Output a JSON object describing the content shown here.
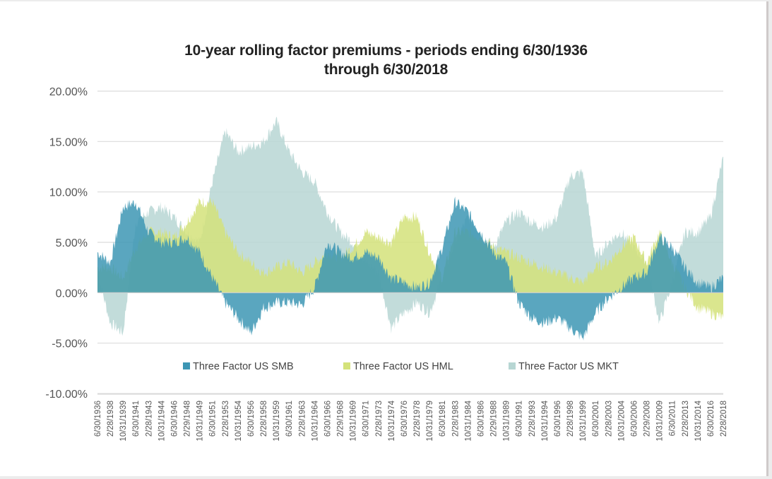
{
  "chart_data": {
    "type": "area",
    "title_lines": [
      "10-year rolling factor premiums - periods ending 6/30/1936",
      "through 6/30/2018"
    ],
    "xlabel": "",
    "ylabel": "",
    "ylim": [
      -0.1,
      0.2
    ],
    "yticks": [
      -0.1,
      -0.05,
      0.0,
      0.05,
      0.1,
      0.15,
      0.2
    ],
    "ytick_labels": [
      "-10.00%",
      "-5.00%",
      "0.00%",
      "5.00%",
      "10.00%",
      "15.00%",
      "20.00%"
    ],
    "grid": true,
    "legend_position": "bottom-inside",
    "categories": [
      "6/30/1936",
      "2/28/1938",
      "10/31/1939",
      "6/30/1941",
      "2/28/1943",
      "10/31/1944",
      "6/30/1946",
      "2/29/1948",
      "10/31/1949",
      "6/30/1951",
      "2/28/1953",
      "10/31/1954",
      "6/30/1956",
      "2/28/1958",
      "10/31/1959",
      "6/30/1961",
      "2/28/1963",
      "10/31/1964",
      "6/30/1966",
      "2/29/1968",
      "10/31/1969",
      "6/30/1971",
      "2/28/1973",
      "10/31/1974",
      "6/30/1976",
      "2/28/1978",
      "10/31/1979",
      "6/30/1981",
      "2/28/1983",
      "10/31/1984",
      "6/30/1986",
      "2/29/1988",
      "10/31/1989",
      "6/30/1991",
      "2/28/1993",
      "10/31/1994",
      "6/30/1996",
      "2/28/1998",
      "10/31/1999",
      "6/30/2001",
      "2/28/2003",
      "10/31/2004",
      "6/30/2006",
      "2/29/2008",
      "10/31/2009",
      "6/30/2011",
      "2/28/2013",
      "10/31/2014",
      "6/30/2016",
      "2/28/2018"
    ],
    "series": [
      {
        "name": "Three Factor US MKT",
        "color": "#b7d6d3",
        "values": [
          0.02,
          -0.03,
          -0.04,
          0.07,
          0.08,
          0.085,
          0.075,
          0.06,
          0.05,
          0.11,
          0.16,
          0.14,
          0.145,
          0.15,
          0.17,
          0.14,
          0.12,
          0.11,
          0.08,
          0.06,
          0.05,
          0.03,
          0.02,
          -0.035,
          -0.02,
          -0.01,
          -0.02,
          0.015,
          0.05,
          0.075,
          0.06,
          0.045,
          0.07,
          0.08,
          0.07,
          0.065,
          0.075,
          0.115,
          0.12,
          0.035,
          0.05,
          0.06,
          0.045,
          0.03,
          -0.03,
          0.01,
          0.06,
          0.06,
          0.075,
          0.135
        ]
      },
      {
        "name": "Three Factor US HML",
        "color": "#d4e27a",
        "values": [
          0.025,
          0.025,
          0.015,
          0.045,
          0.06,
          0.06,
          0.055,
          0.07,
          0.09,
          0.09,
          0.06,
          0.04,
          0.03,
          0.02,
          0.025,
          0.03,
          0.02,
          0.03,
          0.04,
          0.035,
          0.045,
          0.06,
          0.055,
          0.05,
          0.075,
          0.075,
          0.04,
          0.015,
          0.06,
          0.06,
          0.055,
          0.045,
          0.04,
          0.035,
          0.03,
          0.025,
          0.02,
          0.015,
          0.01,
          0.025,
          0.03,
          0.045,
          0.055,
          0.03,
          0.06,
          0.03,
          0.005,
          -0.015,
          -0.02,
          -0.025
        ]
      },
      {
        "name": "Three Factor US SMB",
        "color": "#3d96b4",
        "values": [
          0.04,
          0.03,
          0.085,
          0.09,
          0.06,
          0.05,
          0.05,
          0.055,
          0.04,
          0.015,
          -0.01,
          -0.025,
          -0.04,
          -0.015,
          -0.01,
          -0.01,
          -0.012,
          0.005,
          0.05,
          0.04,
          0.035,
          0.04,
          0.035,
          0.015,
          0.01,
          0.005,
          0.01,
          0.045,
          0.09,
          0.08,
          0.06,
          0.04,
          0.03,
          -0.01,
          -0.025,
          -0.03,
          -0.025,
          -0.035,
          -0.045,
          -0.02,
          -0.005,
          0.005,
          0.015,
          0.02,
          0.055,
          0.045,
          0.025,
          0.01,
          0.005,
          0.015
        ]
      }
    ]
  }
}
